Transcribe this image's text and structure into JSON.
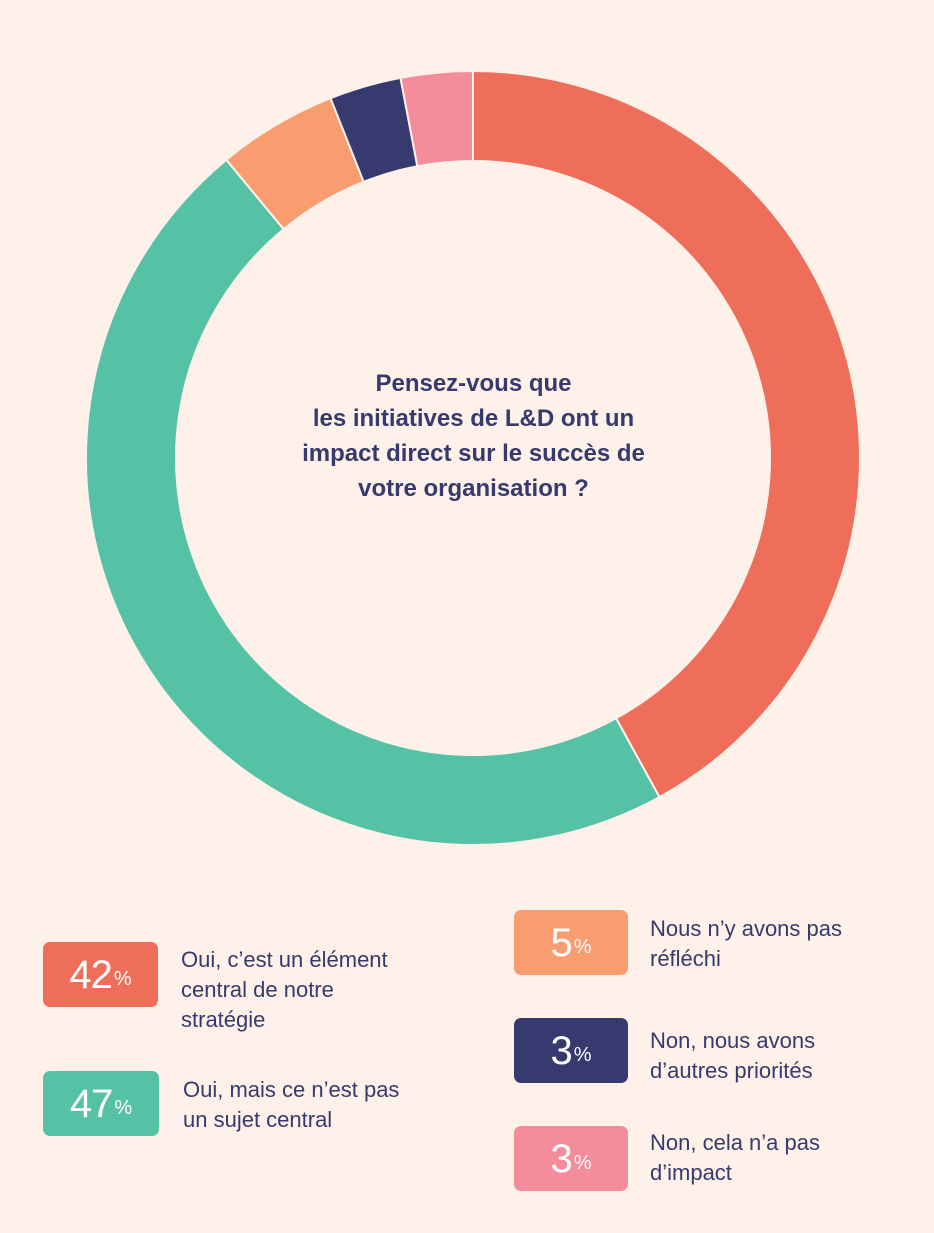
{
  "chart_data": {
    "type": "pie",
    "title": "Pensez-vous que les initiatives de L&D ont un impact direct sur le succès de votre organisation ?",
    "title_lines": [
      "Pensez-vous que",
      "les initiatives de L&D ont un",
      "impact direct sur le succès de",
      "votre organisation ?"
    ],
    "percent_sign": "%",
    "slices": [
      {
        "value": 42,
        "value_label": "42",
        "label": "Oui, c'est un élément central de notre stratégie",
        "label_lines": [
          "Oui, c’est un élément",
          "central de notre",
          "stratégie"
        ],
        "color": "#ee6e59"
      },
      {
        "value": 47,
        "value_label": "47",
        "label": "Oui, mais ce n'est pas un sujet central",
        "label_lines": [
          "Oui, mais ce n’est pas",
          "un sujet central"
        ],
        "color": "#55c2a6"
      },
      {
        "value": 5,
        "value_label": "5",
        "label": "Nous n'y avons pas réfléchi",
        "label_lines": [
          "Nous n’y avons pas",
          "réfléchi"
        ],
        "color": "#f99d70"
      },
      {
        "value": 3,
        "value_label": "3",
        "label": "Non, nous avons d'autres priorités",
        "label_lines": [
          "Non, nous avons",
          "d’autres priorités"
        ],
        "color": "#373a6e"
      },
      {
        "value": 3,
        "value_label": "3",
        "label": "Non, cela n'a pas d'impact",
        "label_lines": [
          "Non, cela n’a pas",
          "d’impact"
        ],
        "color": "#f48c9b"
      }
    ],
    "donut": true,
    "start_angle": "12 o'clock",
    "direction": "clockwise",
    "legend_placement": "bottom"
  }
}
